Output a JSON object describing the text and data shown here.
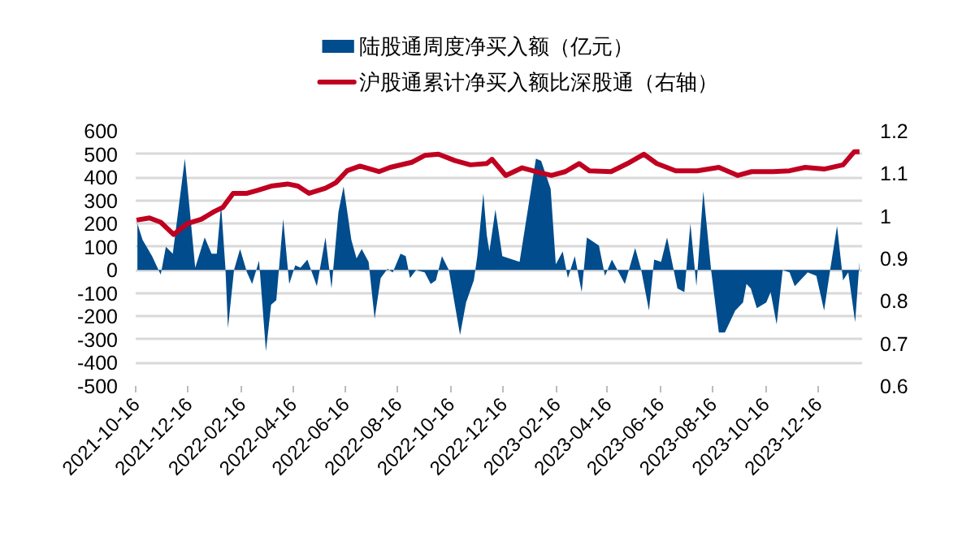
{
  "chart_data": {
    "type": "area",
    "legend": "top",
    "grid": "y",
    "xlim": [
      "2021-10-16",
      "2024-02-05"
    ],
    "xticks": [
      "2021-10-16",
      "2021-12-16",
      "2022-02-16",
      "2022-04-16",
      "2022-06-16",
      "2022-08-16",
      "2022-10-16",
      "2022-12-16",
      "2023-02-16",
      "2023-04-16",
      "2023-06-16",
      "2023-08-16",
      "2023-10-16",
      "2023-12-16"
    ],
    "ylim": [
      -500,
      600
    ],
    "yticks": [
      -500,
      -400,
      -300,
      -200,
      -100,
      0,
      100,
      200,
      300,
      400,
      500,
      600
    ],
    "y2lim": [
      0.6,
      1.2
    ],
    "y2ticks": [
      0.6,
      0.7,
      0.8,
      0.9,
      1,
      1.1,
      1.2
    ],
    "series": [
      {
        "name": "陆股通周度净买入额（亿元）",
        "color": "#004c8c",
        "x": [
          "2021-10-18",
          "2021-10-24",
          "2021-11-04",
          "2021-11-14",
          "2021-11-20",
          "2021-11-28",
          "2021-12-12",
          "2021-12-24",
          "2022-01-04",
          "2022-01-12",
          "2022-01-18",
          "2022-01-23",
          "2022-01-28",
          "2022-01-31",
          "2022-02-07",
          "2022-02-14",
          "2022-02-22",
          "2022-02-28",
          "2022-03-08",
          "2022-03-16",
          "2022-03-22",
          "2022-03-28",
          "2022-04-05",
          "2022-04-12",
          "2022-04-19",
          "2022-04-25",
          "2022-05-03",
          "2022-05-14",
          "2022-05-24",
          "2022-05-31",
          "2022-06-08",
          "2022-06-14",
          "2022-06-23",
          "2022-06-29",
          "2022-07-05",
          "2022-07-13",
          "2022-07-20",
          "2022-07-27",
          "2022-08-04",
          "2022-08-10",
          "2022-08-19",
          "2022-08-25",
          "2022-08-30",
          "2022-09-06",
          "2022-09-16",
          "2022-09-23",
          "2022-09-29",
          "2022-10-06",
          "2022-10-14",
          "2022-10-27",
          "2022-11-03",
          "2022-11-12",
          "2022-11-16",
          "2022-11-23",
          "2022-11-27",
          "2022-11-30",
          "2022-12-07",
          "2022-12-15",
          "2023-01-04",
          "2023-01-23",
          "2023-01-29",
          "2023-02-09",
          "2023-02-15",
          "2023-02-23",
          "2023-03-01",
          "2023-03-09",
          "2023-03-17",
          "2023-03-23",
          "2023-04-06",
          "2023-04-13",
          "2023-04-21",
          "2023-05-06",
          "2023-05-18",
          "2023-05-25",
          "2023-06-03",
          "2023-06-09",
          "2023-06-17",
          "2023-06-24",
          "2023-07-06",
          "2023-07-14",
          "2023-07-21",
          "2023-07-28",
          "2023-08-05",
          "2023-08-14",
          "2023-08-23",
          "2023-08-30",
          "2023-09-11",
          "2023-09-20",
          "2023-09-24",
          "2023-09-29",
          "2023-10-06",
          "2023-10-17",
          "2023-10-22",
          "2023-10-29",
          "2023-11-05",
          "2023-11-13",
          "2023-11-19",
          "2023-12-04",
          "2023-12-14",
          "2023-12-23",
          "2023-12-30",
          "2024-01-07",
          "2024-01-14",
          "2024-01-20",
          "2024-01-28",
          "2024-02-02"
        ],
        "values": [
          200,
          130,
          60,
          -20,
          100,
          70,
          480,
          10,
          140,
          70,
          70,
          280,
          10,
          -250,
          0,
          90,
          -10,
          -60,
          40,
          -350,
          -150,
          -130,
          220,
          -60,
          20,
          10,
          45,
          -70,
          140,
          -80,
          250,
          360,
          130,
          50,
          90,
          35,
          -210,
          -35,
          5,
          -10,
          70,
          60,
          -35,
          0,
          -10,
          -60,
          -45,
          60,
          0,
          -280,
          -140,
          -45,
          60,
          330,
          150,
          80,
          260,
          60,
          35,
          480,
          470,
          350,
          25,
          80,
          -35,
          60,
          -95,
          140,
          105,
          -25,
          45,
          -60,
          95,
          0,
          -175,
          45,
          35,
          140,
          -80,
          -95,
          200,
          -70,
          340,
          0,
          -270,
          -270,
          -175,
          -140,
          -60,
          -80,
          -165,
          -140,
          -95,
          -235,
          0,
          -10,
          -70,
          -10,
          -25,
          -175,
          0,
          190,
          -45,
          -10,
          -225,
          35
        ]
      },
      {
        "name": "沪股通累计净买入额比深股通（右轴）",
        "type": "line",
        "axis": "y2",
        "color": "#c00020",
        "x": [
          "2021-10-17",
          "2021-11-01",
          "2021-11-14",
          "2021-11-29",
          "2021-12-15",
          "2021-12-31",
          "2022-01-15",
          "2022-01-25",
          "2022-02-06",
          "2022-02-22",
          "2022-03-06",
          "2022-03-22",
          "2022-04-10",
          "2022-04-22",
          "2022-05-05",
          "2022-05-24",
          "2022-06-05",
          "2022-06-18",
          "2022-07-03",
          "2022-07-25",
          "2022-08-07",
          "2022-09-01",
          "2022-09-16",
          "2022-10-02",
          "2022-10-21",
          "2022-11-08",
          "2022-11-27",
          "2022-12-03",
          "2022-12-19",
          "2023-01-07",
          "2023-01-29",
          "2023-02-10",
          "2023-02-26",
          "2023-03-14",
          "2023-03-26",
          "2023-04-20",
          "2023-05-09",
          "2023-05-28",
          "2023-06-12",
          "2023-07-04",
          "2023-07-29",
          "2023-08-23",
          "2023-09-14",
          "2023-09-30",
          "2023-10-25",
          "2023-11-13",
          "2023-12-01",
          "2023-12-23",
          "2024-01-14",
          "2024-01-27",
          "2024-02-02"
        ],
        "values": [
          0.99,
          0.995,
          0.985,
          0.956,
          0.982,
          0.992,
          1.01,
          1.02,
          1.053,
          1.053,
          1.06,
          1.07,
          1.075,
          1.07,
          1.053,
          1.065,
          1.078,
          1.106,
          1.117,
          1.104,
          1.114,
          1.126,
          1.142,
          1.145,
          1.13,
          1.12,
          1.123,
          1.133,
          1.095,
          1.113,
          1.101,
          1.095,
          1.104,
          1.123,
          1.106,
          1.104,
          1.123,
          1.145,
          1.123,
          1.106,
          1.106,
          1.114,
          1.095,
          1.104,
          1.104,
          1.106,
          1.114,
          1.11,
          1.12,
          1.151,
          1.151
        ]
      }
    ]
  }
}
